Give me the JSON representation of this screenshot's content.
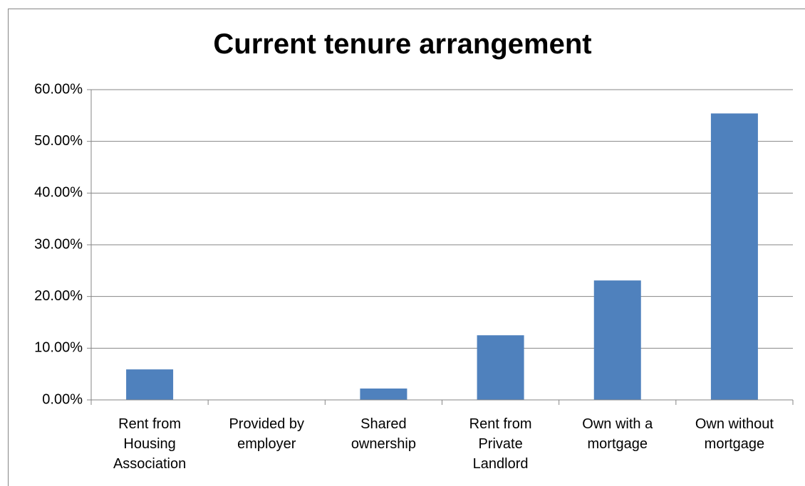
{
  "chart_data": {
    "type": "bar",
    "title": "Current tenure arrangement",
    "categories": [
      "Rent from Housing Association",
      "Provided by employer",
      "Shared ownership",
      "Rent from Private Landlord",
      "Own with a mortgage",
      "Own without mortgage"
    ],
    "values": [
      5.9,
      0,
      2.2,
      12.5,
      23.1,
      55.4
    ],
    "color": "#4f81bd",
    "ylim": [
      0,
      60
    ],
    "yticks": [
      {
        "value": 0,
        "label": "0.00%"
      },
      {
        "value": 10,
        "label": "10.00%"
      },
      {
        "value": 20,
        "label": "20.00%"
      },
      {
        "value": 30,
        "label": "30.00%"
      },
      {
        "value": 40,
        "label": "40.00%"
      },
      {
        "value": 50,
        "label": "50.00%"
      },
      {
        "value": 60,
        "label": "60.00%"
      }
    ],
    "grid": true
  }
}
